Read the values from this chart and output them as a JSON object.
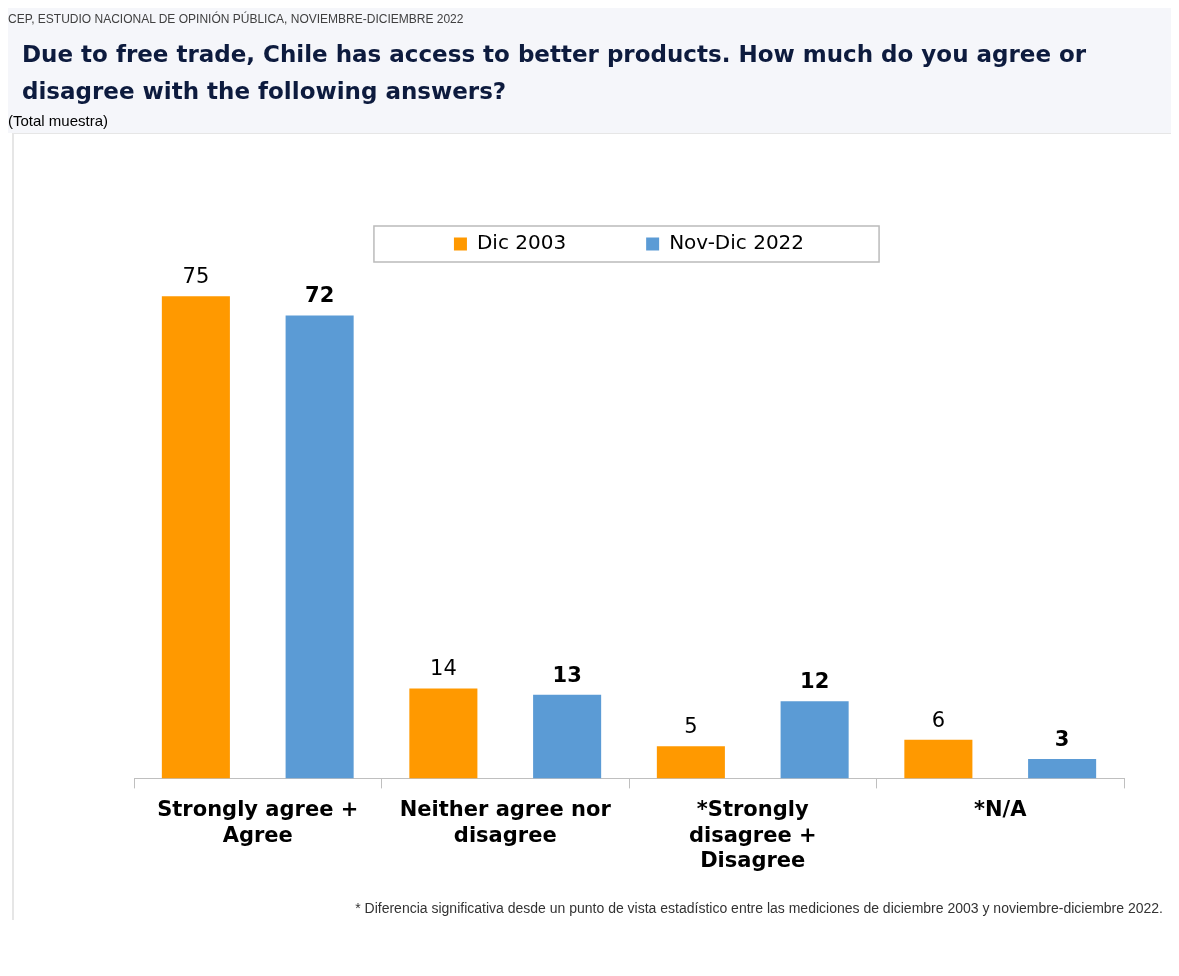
{
  "chart_data": {
    "type": "bar",
    "title": "Due to free trade, Chile has access to better products. How much do you agree or disagree with the following answers?",
    "subtitle": "(Total muestra)",
    "annotations": [
      "CEP, ESTUDIO NACIONAL DE OPINIÓN PÚBLICA, NOVIEMBRE-DICIEMBRE 2022",
      "* Diferencia significativa desde un punto de vista estadístico entre las mediciones de diciembre 2003 y noviembre-diciembre 2022."
    ],
    "categories": [
      "Strongly agree + Agree",
      "Neither agree nor disagree",
      "*Strongly disagree + Disagree",
      "*N/A"
    ],
    "series": [
      {
        "name": "Dic 2003",
        "color": "#ff9900",
        "values": [
          75,
          14,
          5,
          6
        ]
      },
      {
        "name": "Nov-Dic 2022",
        "color": "#5b9bd5",
        "values": [
          72,
          13,
          12,
          3
        ]
      }
    ],
    "data_labels": true,
    "legend": "top",
    "grid": false
  }
}
